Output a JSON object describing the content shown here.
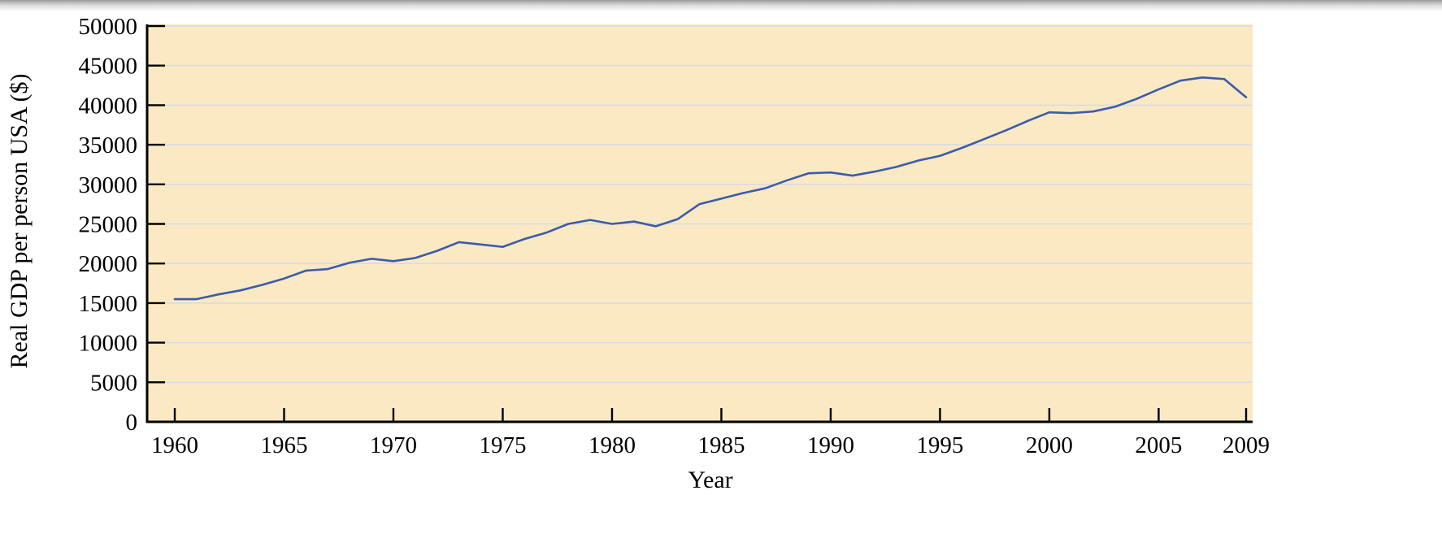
{
  "figure": {
    "xlabel": "Year",
    "ylabel": "Real GDP per person USA ($)"
  },
  "chart_data": {
    "type": "line",
    "title": "",
    "xlabel": "Year",
    "ylabel": "Real GDP per person USA ($)",
    "xlim": [
      1960,
      2009
    ],
    "ylim": [
      0,
      50000
    ],
    "xticks": [
      1960,
      1965,
      1970,
      1975,
      1980,
      1985,
      1990,
      1995,
      2000,
      2005,
      2009
    ],
    "yticks": [
      0,
      5000,
      10000,
      15000,
      20000,
      25000,
      30000,
      35000,
      40000,
      45000,
      50000
    ],
    "grid": true,
    "legend": "none",
    "x": [
      1960,
      1961,
      1962,
      1963,
      1964,
      1965,
      1966,
      1967,
      1968,
      1969,
      1970,
      1971,
      1972,
      1973,
      1974,
      1975,
      1976,
      1977,
      1978,
      1979,
      1980,
      1981,
      1982,
      1983,
      1984,
      1985,
      1986,
      1987,
      1988,
      1989,
      1990,
      1991,
      1992,
      1993,
      1994,
      1995,
      1996,
      1997,
      1998,
      1999,
      2000,
      2001,
      2002,
      2003,
      2004,
      2005,
      2006,
      2007,
      2008,
      2009
    ],
    "series": [
      {
        "name": "Real GDP per person USA ($)",
        "values": [
          15500,
          15500,
          16100,
          16600,
          17300,
          18100,
          19100,
          19300,
          20100,
          20600,
          20300,
          20700,
          21600,
          22700,
          22400,
          22100,
          23100,
          23900,
          25000,
          25500,
          25000,
          25300,
          24700,
          25600,
          27500,
          28200,
          28900,
          29500,
          30500,
          31400,
          31500,
          31100,
          31600,
          32200,
          33000,
          33600,
          34600,
          35700,
          36800,
          38000,
          39100,
          39000,
          39200,
          39800,
          40800,
          42000,
          43100,
          43500,
          43300,
          41000
        ]
      }
    ],
    "colors": {
      "line": "#3b5ca8",
      "plot_bg": "#fbe9c4",
      "grid": "#d8dbe6",
      "axis": "#000000",
      "text": "#000000"
    }
  }
}
